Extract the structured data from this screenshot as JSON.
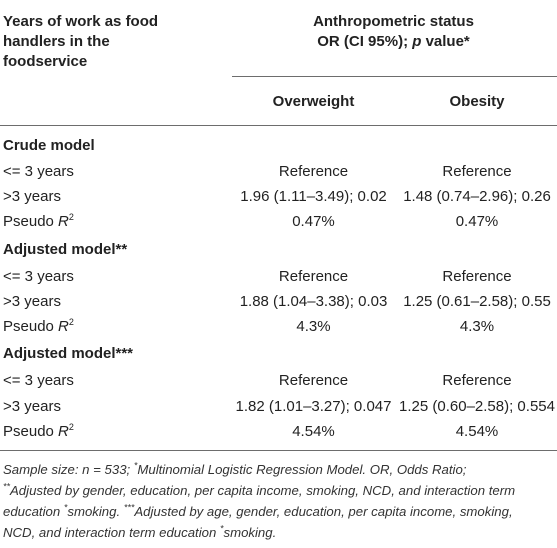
{
  "header": {
    "col0_lines": [
      "Years of work as food",
      "handlers in the",
      "foodservice"
    ],
    "group_line1": "Anthropometric status",
    "group_line2_a": "OR (CI 95%); ",
    "group_line2_p": "p",
    "group_line2_b": " value*",
    "sub_col1": "Overweight",
    "sub_col2": "Obesity"
  },
  "sections": [
    {
      "title": "Crude model",
      "rows": [
        {
          "label": "<= 3 years",
          "overweight": "Reference",
          "obesity": "Reference"
        },
        {
          "label": ">3 years",
          "overweight": "1.96 (1.11–3.49); 0.02",
          "obesity": "1.48 (0.74–2.96); 0.26"
        },
        {
          "label_prefix": "Pseudo ",
          "label_r": "R",
          "label_sup": "2",
          "overweight": "0.47%",
          "obesity": "0.47%"
        }
      ]
    },
    {
      "title": "Adjusted model**",
      "rows": [
        {
          "label": "<= 3 years",
          "overweight": "Reference",
          "obesity": "Reference"
        },
        {
          "label": ">3 years",
          "overweight": "1.88 (1.04–3.38); 0.03",
          "obesity": "1.25 (0.61–2.58); 0.55"
        },
        {
          "label_prefix": "Pseudo ",
          "label_r": "R",
          "label_sup": "2",
          "overweight": "4.3%",
          "obesity": "4.3%"
        }
      ]
    },
    {
      "title": "Adjusted model***",
      "rows": [
        {
          "label": "<= 3 years",
          "overweight": "Reference",
          "obesity": "Reference"
        },
        {
          "label": ">3 years",
          "overweight": "1.82 (1.01–3.27); 0.047",
          "obesity": "1.25 (0.60–2.58); 0.554"
        },
        {
          "label_prefix": "Pseudo ",
          "label_r": "R",
          "label_sup": "2",
          "overweight": "4.54%",
          "obesity": "4.54%"
        }
      ]
    }
  ],
  "footnote": {
    "l1_a": "Sample size: n = 533; ",
    "l1_sup": "*",
    "l1_b": "Multinomial Logistic Regression Model. OR, Odds Ratio;",
    "l2_sup": "**",
    "l2_b": "Adjusted by gender, education, per capita income, smoking, NCD, and interaction term",
    "l3_a": "education ",
    "l3_sup1": "*",
    "l3_b": "smoking. ",
    "l3_sup2": "***",
    "l3_c": "Adjusted by age, gender, education, per capita income, smoking,",
    "l4_a": "NCD, and interaction term education ",
    "l4_sup": "*",
    "l4_b": "smoking."
  }
}
